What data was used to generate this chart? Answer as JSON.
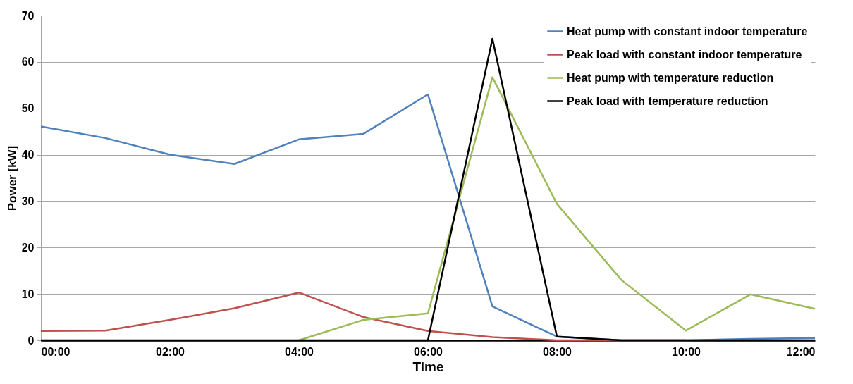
{
  "chart_data": {
    "type": "line",
    "xlabel": "Time",
    "ylabel": "Power [kW]",
    "x": [
      0,
      1,
      2,
      3,
      4,
      5,
      6,
      7,
      8,
      9,
      10,
      11,
      12
    ],
    "xlim": [
      0,
      12
    ],
    "xticks": [
      {
        "value": 0,
        "label": "00:00"
      },
      {
        "value": 2,
        "label": "02:00"
      },
      {
        "value": 4,
        "label": "04:00"
      },
      {
        "value": 6,
        "label": "06:00"
      },
      {
        "value": 8,
        "label": "08:00"
      },
      {
        "value": 10,
        "label": "10:00"
      },
      {
        "value": 12,
        "label": "12:00"
      }
    ],
    "ylim": [
      0,
      70
    ],
    "yticks": [
      0,
      10,
      20,
      30,
      40,
      50,
      60,
      70
    ],
    "grid": "y",
    "legend": "top right",
    "marker": "none",
    "line_style": "solid",
    "series": [
      {
        "name": "Heat pump with constant indoor temperature",
        "color": "#4f81bd",
        "values": [
          46.1,
          43.6,
          40,
          38,
          43.3,
          44.5,
          53,
          7.3,
          0.8,
          0,
          0,
          0.3,
          0.5
        ]
      },
      {
        "name": "Peak load with constant indoor temperature",
        "color": "#c0504d",
        "values": [
          2,
          2.1,
          4.4,
          6.9,
          10.3,
          5,
          2,
          0.7,
          0,
          0,
          0,
          null,
          null
        ]
      },
      {
        "name": "Heat pump with temperature reduction",
        "color": "#9bbb59",
        "values": [
          null,
          null,
          null,
          null,
          0,
          4.4,
          5.8,
          56.7,
          29.4,
          13,
          2.1,
          9.9,
          6.8
        ]
      },
      {
        "name": "Peak load with temperature reduction",
        "color": "#000000",
        "values": [
          0,
          0,
          0,
          0,
          0,
          0,
          0,
          65,
          0.8,
          0,
          0,
          0,
          0
        ]
      }
    ]
  }
}
